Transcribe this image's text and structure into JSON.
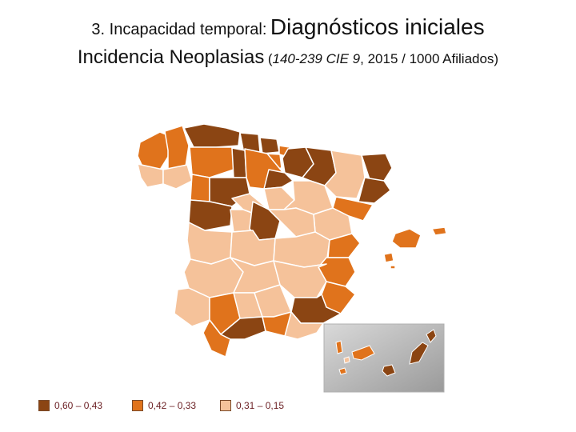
{
  "title_line1": {
    "prefix": "3. Incapacidad temporal:",
    "emphasis": "Diagnósticos iniciales"
  },
  "title_line2": {
    "main": "Incidencia Neoplasias",
    "paren_open": "(",
    "code": "140-239 CIE 9",
    "rest": ", 2015 / 1000 Afiliados)"
  },
  "colors": {
    "high": "#8b4513",
    "mid": "#e0731c",
    "low": "#f5c29a",
    "outline": "#ffffff",
    "canary_box": "#bfbfbf"
  },
  "legend": [
    {
      "label": "0,60 – 0,43",
      "color": "#8b4513"
    },
    {
      "label": "0,42 – 0,33",
      "color": "#e0731c"
    },
    {
      "label": "0,31 – 0,15",
      "color": "#f5c29a"
    }
  ]
}
